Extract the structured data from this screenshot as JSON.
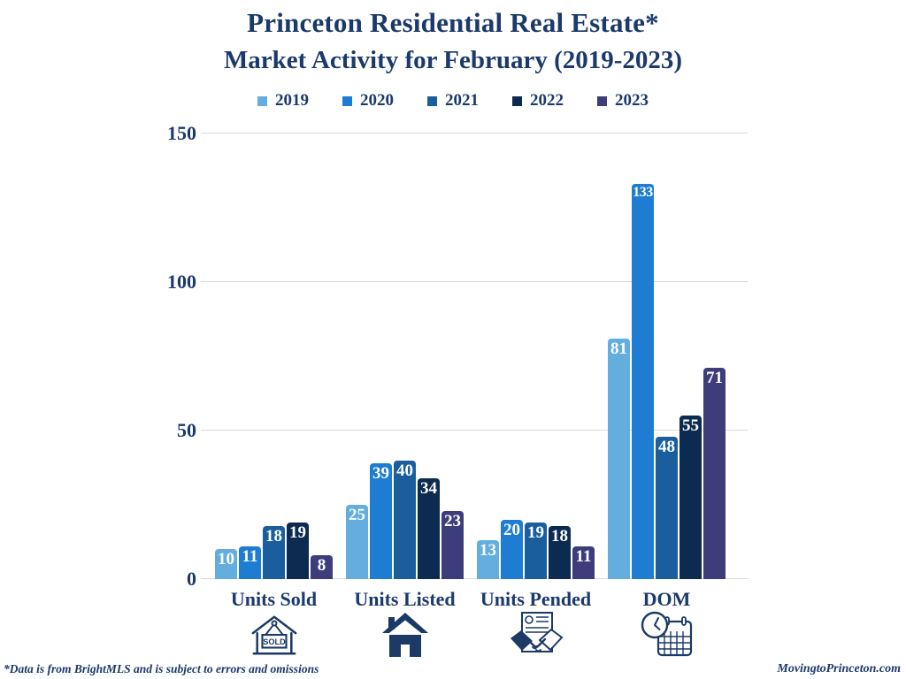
{
  "title": {
    "line1": "Princeton Residential Real Estate*",
    "line2": "Market Activity for February (2019-2023)"
  },
  "chart_data": {
    "type": "bar",
    "title": "Princeton Residential Real Estate* Market Activity for February (2019-2023)",
    "categories": [
      "Units Sold",
      "Units Listed",
      "Units Pended",
      "DOM"
    ],
    "series": [
      {
        "name": "2019",
        "color": "#63AEDF",
        "values": [
          10,
          25,
          13,
          81
        ]
      },
      {
        "name": "2020",
        "color": "#1E7DD2",
        "values": [
          11,
          39,
          20,
          133
        ]
      },
      {
        "name": "2021",
        "color": "#1A5E9E",
        "values": [
          18,
          40,
          19,
          48
        ]
      },
      {
        "name": "2022",
        "color": "#0D2B50",
        "values": [
          19,
          34,
          18,
          55
        ]
      },
      {
        "name": "2023",
        "color": "#3D3D7B",
        "values": [
          8,
          23,
          11,
          71
        ]
      }
    ],
    "xlabel": "",
    "ylabel": "",
    "ylim": [
      0,
      150
    ],
    "yticks": [
      0,
      50,
      100,
      150
    ],
    "grid": true,
    "legend_position": "top",
    "value_labels": "inside-top, white"
  },
  "category_icons": [
    "sold-sign-icon",
    "house-icon",
    "handshake-icon",
    "clock-calendar-icon"
  ],
  "footer": {
    "left": "*Data is from BrightMLS and is subject to errors and omissions",
    "right": "MovingtoPrinceton.com"
  },
  "colors": {
    "text_navy": "#1B3A6B",
    "gridline": "#D9D9D9",
    "value_label": "#FFFFFF",
    "background": "#FFFFFF",
    "icon_navy": "#1B3A66"
  }
}
